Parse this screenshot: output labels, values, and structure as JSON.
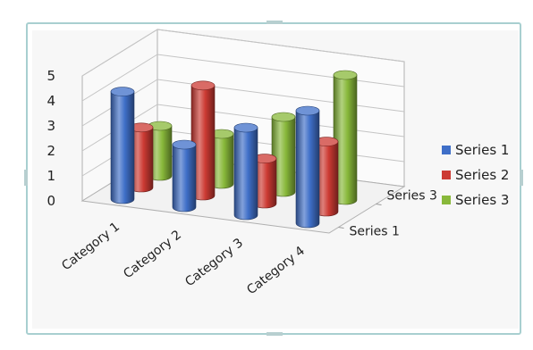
{
  "chart_data": {
    "type": "bar",
    "subtype": "3d-cylinder",
    "title": "",
    "xlabel": "",
    "ylabel": "",
    "categories": [
      "Category 1",
      "Category 2",
      "Category 3",
      "Category 4"
    ],
    "depth_labels": [
      "Series 3",
      "Series 1"
    ],
    "ylim": [
      0,
      5
    ],
    "y_ticks": [
      "0",
      "1",
      "2",
      "3",
      "4",
      "5"
    ],
    "series": [
      {
        "name": "Series 1",
        "color": "#3f6fc8",
        "values": [
          4.3,
          2.5,
          3.5,
          4.5
        ]
      },
      {
        "name": "Series 2",
        "color": "#cc3a33",
        "values": [
          2.4,
          4.4,
          1.8,
          2.8
        ]
      },
      {
        "name": "Series 3",
        "color": "#88b83a",
        "values": [
          2.0,
          2.0,
          3.0,
          5.0
        ]
      }
    ],
    "legend_position": "right",
    "grid": true
  }
}
